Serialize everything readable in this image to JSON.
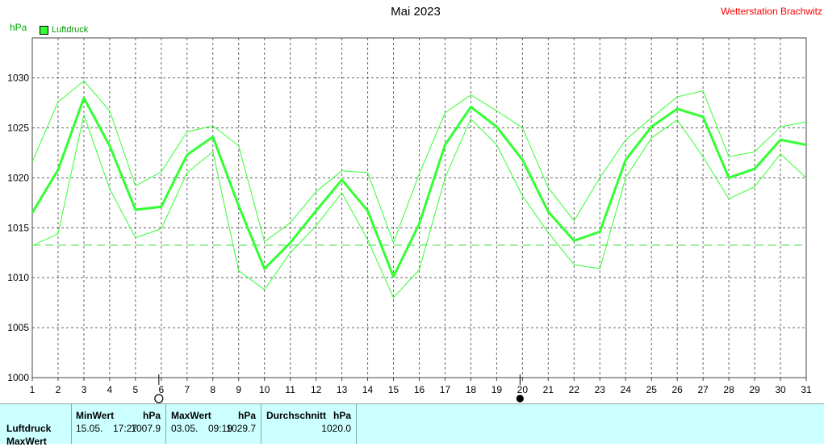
{
  "header": {
    "title": "Mai 2023",
    "station": "Wetterstation Brachwitz",
    "unit": "hPa"
  },
  "colors": {
    "series": "#33ff33",
    "band": "#33ff33",
    "grid": "#666666",
    "station": "#ff0000",
    "panel": "#ccffff"
  },
  "chart_data": {
    "type": "line",
    "ylabel": "hPa",
    "ylim": [
      1000,
      1034
    ],
    "yticks": [
      1000,
      1005,
      1010,
      1015,
      1020,
      1025,
      1030
    ],
    "xlim": [
      1,
      31
    ],
    "x": [
      1,
      2,
      3,
      4,
      5,
      6,
      7,
      8,
      9,
      10,
      11,
      12,
      13,
      14,
      15,
      16,
      17,
      18,
      19,
      20,
      21,
      22,
      23,
      24,
      25,
      26,
      27,
      28,
      29,
      30,
      31
    ],
    "legend": [
      "Luftdruck"
    ],
    "legend_position": "top-left",
    "grid": true,
    "reference_line": 1013.25,
    "moon_phases": [
      {
        "day": 6,
        "phase": "full-moon-icon"
      },
      {
        "day": 20,
        "phase": "new-moon-icon"
      }
    ],
    "series": [
      {
        "name": "Luftdruck",
        "role": "average",
        "values": [
          1016.5,
          1020.8,
          1028.0,
          1023.2,
          1016.8,
          1017.1,
          1022.3,
          1024.1,
          1017.2,
          1010.9,
          1013.5,
          1016.7,
          1019.8,
          1016.7,
          1010.1,
          1015.4,
          1023.3,
          1027.1,
          1025.1,
          1021.8,
          1016.6,
          1013.7,
          1014.6,
          1021.8,
          1025.1,
          1026.9,
          1026.1,
          1020.0,
          1020.9,
          1023.8,
          1023.3
        ]
      },
      {
        "role": "max",
        "values": [
          1021.6,
          1027.6,
          1029.7,
          1026.7,
          1019.2,
          1020.6,
          1024.6,
          1025.2,
          1023.2,
          1013.6,
          1015.5,
          1018.6,
          1020.7,
          1020.5,
          1013.5,
          1020.4,
          1026.5,
          1028.3,
          1026.7,
          1025.0,
          1019.0,
          1015.7,
          1020.0,
          1023.8,
          1026.0,
          1028.1,
          1028.7,
          1022.1,
          1022.6,
          1025.1,
          1025.6
        ]
      },
      {
        "role": "min",
        "values": [
          1013.2,
          1014.4,
          1026.3,
          1018.9,
          1014.0,
          1014.9,
          1020.5,
          1022.6,
          1010.7,
          1008.8,
          1012.5,
          1015.2,
          1018.5,
          1013.8,
          1008.0,
          1010.8,
          1020.0,
          1025.9,
          1023.3,
          1018.2,
          1014.5,
          1011.3,
          1010.9,
          1020.0,
          1024.0,
          1025.8,
          1022.1,
          1017.9,
          1019.1,
          1022.4,
          1020.0
        ]
      }
    ]
  },
  "stats": {
    "row_labels": [
      "Luftdruck",
      "MaxWert"
    ],
    "min": {
      "label": "MinWert",
      "unit": "hPa",
      "date": "15.05.",
      "time": "17:27",
      "value": "1007.9"
    },
    "max": {
      "label": "MaxWert",
      "unit": "hPa",
      "date": "03.05.",
      "time": "09:19",
      "value": "1029.7"
    },
    "avg": {
      "label": "Durchschnitt",
      "unit": "hPa",
      "value": "1020.0"
    }
  }
}
